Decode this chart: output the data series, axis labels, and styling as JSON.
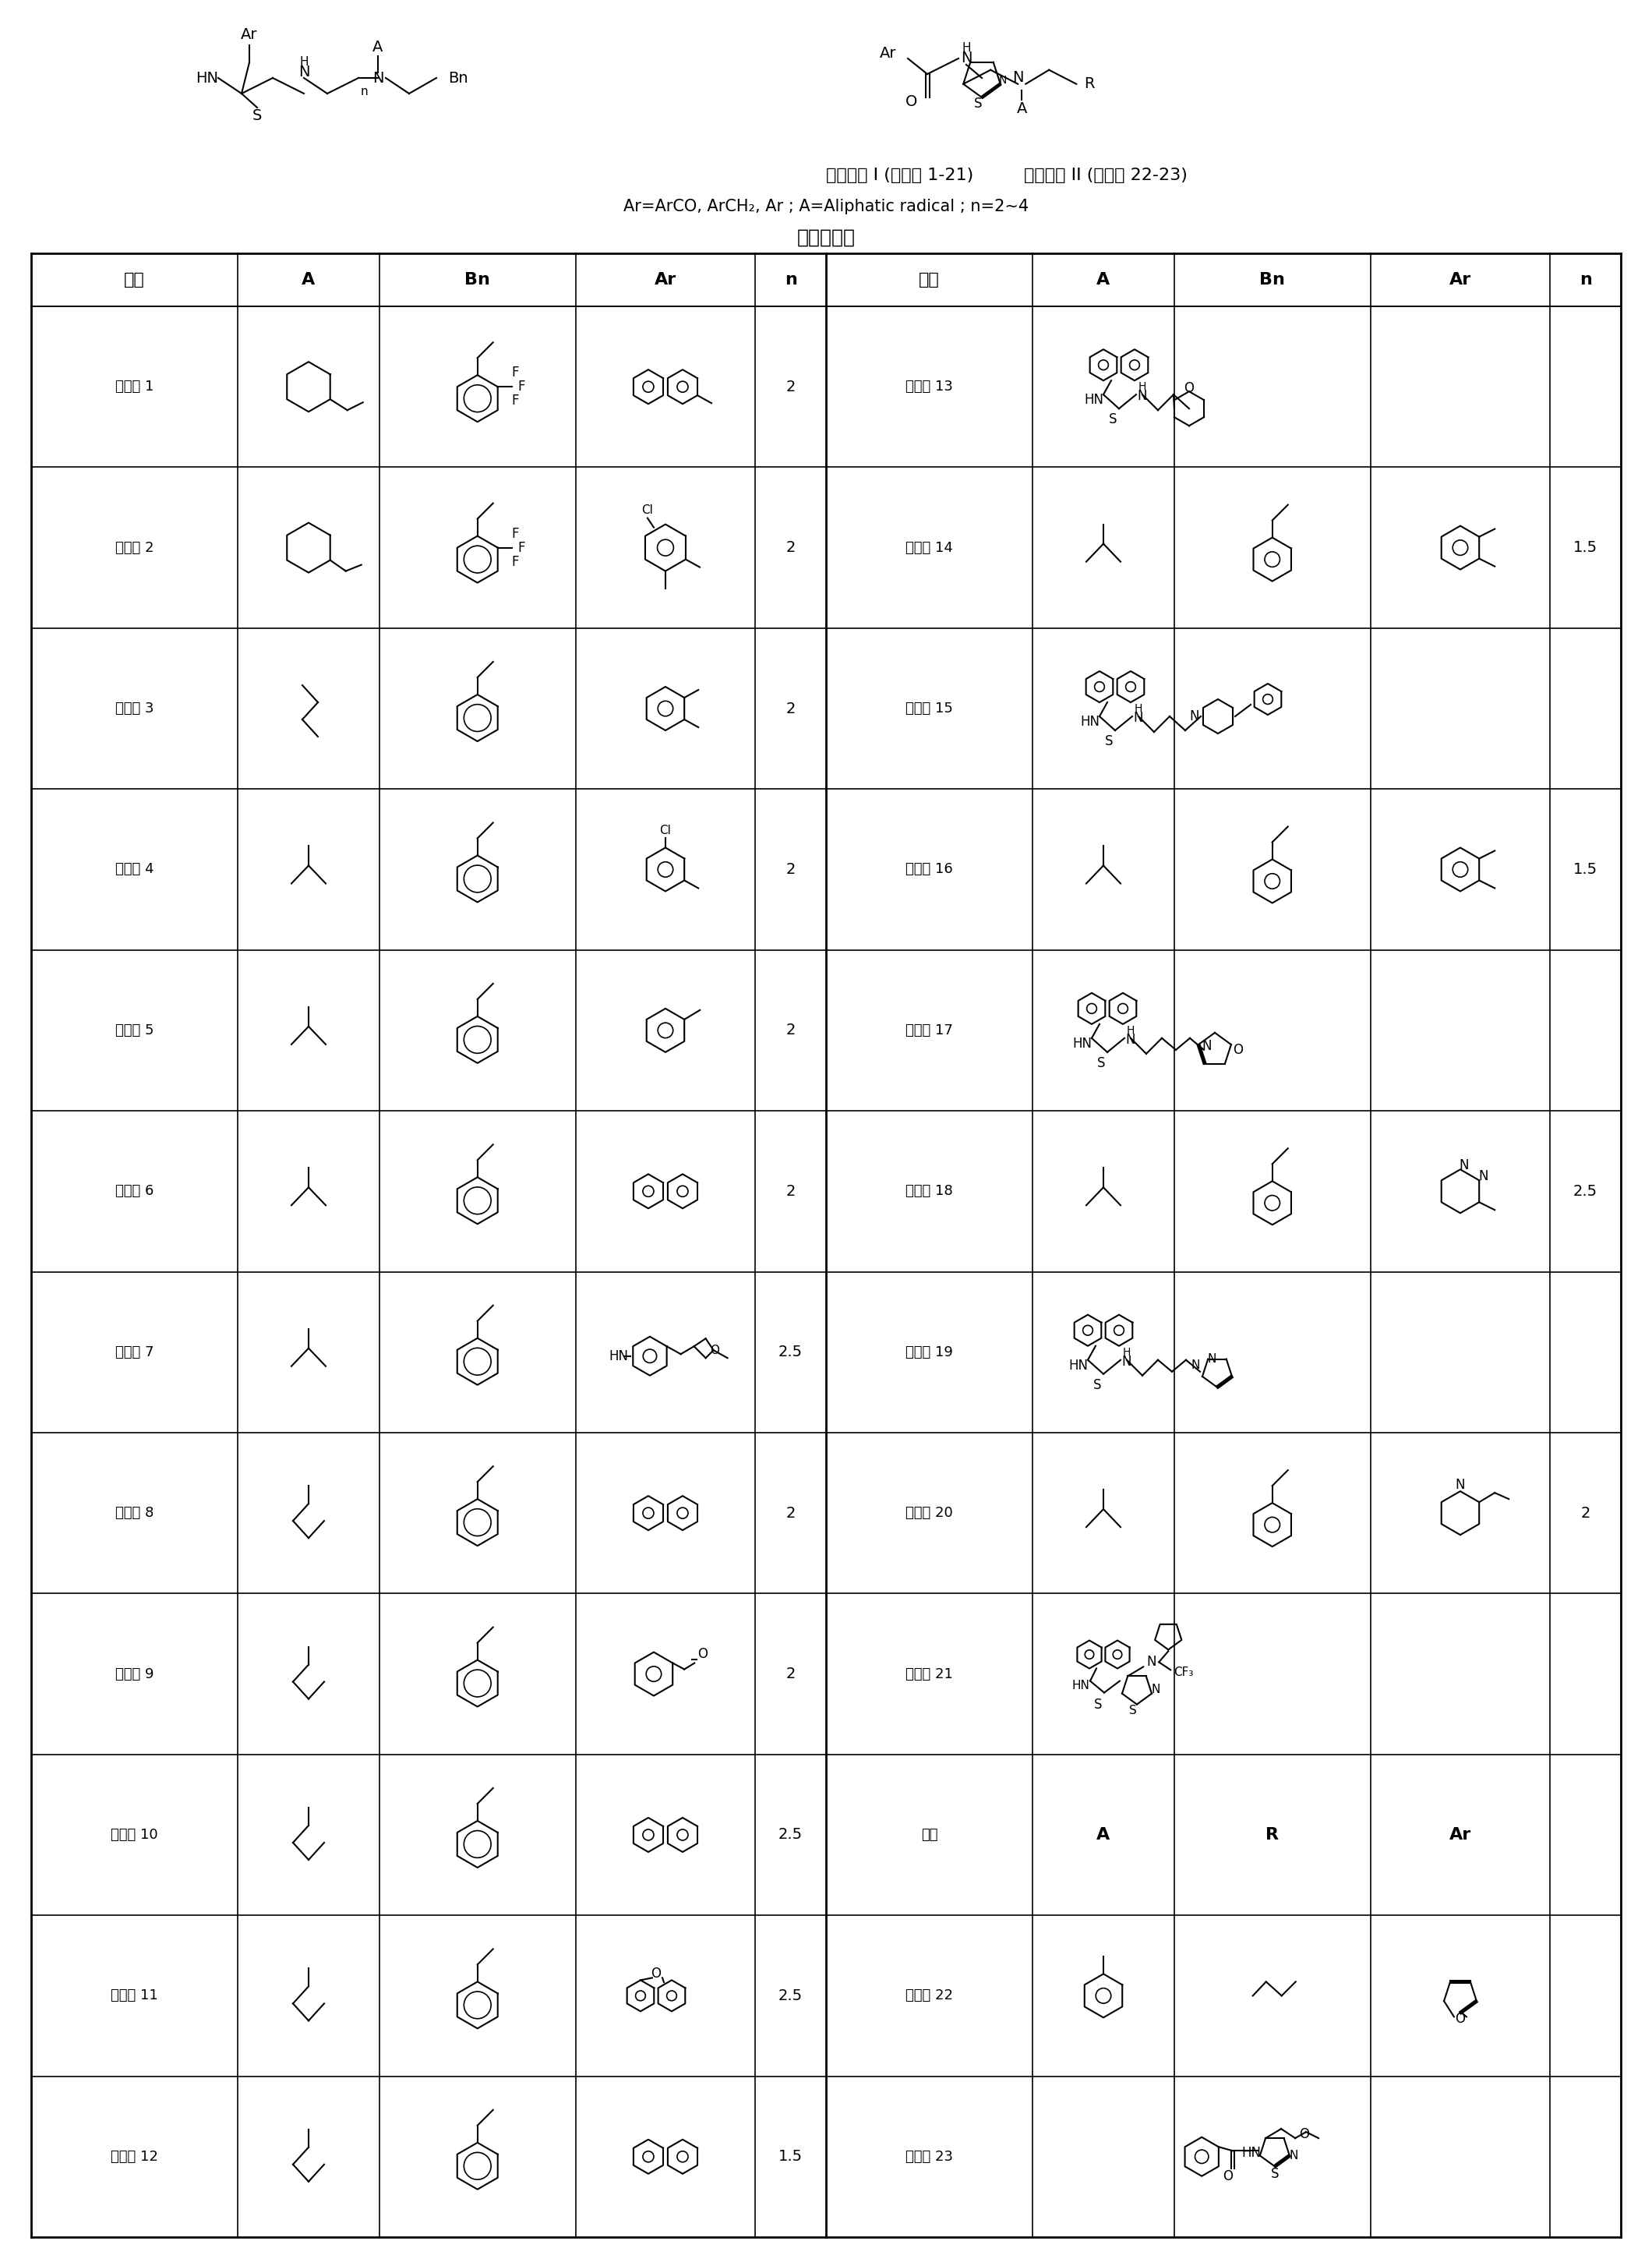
{
  "title_left": "母核结构 I (化合物 1-21)",
  "title_right": "母核结构 II (化合物 22-23)",
  "subtitle": "Ar=ArCO, ArCH₂, Ar ; A=Aliphatic radical ; n=2~4",
  "table_title": "化合物通式",
  "headers_left": [
    "样品",
    "A",
    "Bn",
    "Ar",
    "n"
  ],
  "headers_right": [
    "样品",
    "A",
    "Bn",
    "Ar",
    "n"
  ],
  "names_left": [
    "化合物 1",
    "化合物 2",
    "化合物 3",
    "化合物 4",
    "化合物 5",
    "化合物 6",
    "化合物 7",
    "化合物 8",
    "化合物 9",
    "化合物 10",
    "化合物 11",
    "化合物 12"
  ],
  "n_left": [
    "2",
    "2",
    "2",
    "2",
    "2",
    "2",
    "2.5",
    "2",
    "2",
    "2.5",
    "2.5",
    "1.5"
  ],
  "names_right": [
    "化合物 13",
    "化合物 14",
    "化合物 15",
    "化合物 16",
    "化合物 17",
    "化合物 18",
    "化合物 19",
    "化合物 20",
    "化合物 21",
    "样品",
    "化合物 22",
    "化合物 23"
  ],
  "n_right": [
    "",
    "1.5",
    "",
    "1.5",
    "",
    "2.5",
    "",
    "2",
    "",
    "",
    "",
    ""
  ],
  "bg": "#ffffff"
}
